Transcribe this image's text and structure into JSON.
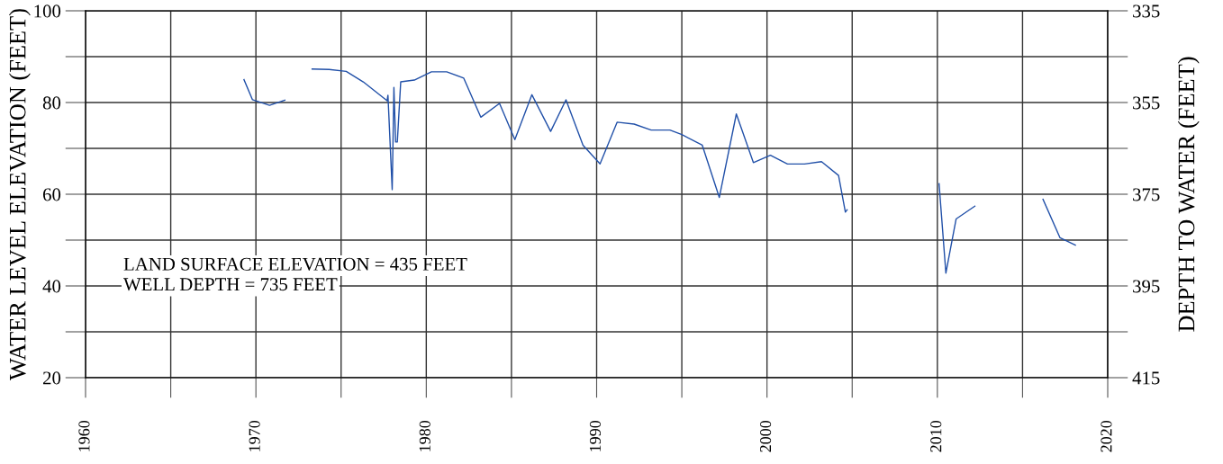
{
  "chart_data": {
    "type": "line",
    "ylabel": "WATER LEVEL ELEVATION (FEET)",
    "y2label": "DEPTH TO WATER (FEET)",
    "x": [
      1969.3,
      1969.8,
      1970.8,
      1971.7,
      null,
      1973.3,
      1974.3,
      1975.3,
      1976.3,
      1977.7,
      1977.75,
      1978.0,
      1978.1,
      1978.2,
      1978.3,
      1978.5,
      1979.3,
      1980.3,
      1981.2,
      1982.2,
      1983.2,
      1984.3,
      1985.2,
      1986.2,
      1987.3,
      1988.2,
      1989.2,
      1990.2,
      1991.2,
      1992.2,
      1993.2,
      1994.3,
      1995.0,
      1996.2,
      1997.2,
      1998.2,
      1999.2,
      2000.2,
      2001.2,
      2002.2,
      2003.2,
      2004.2,
      2004.6,
      2004.7,
      null,
      2010.1,
      2010.5,
      2011.1,
      2012.2,
      null,
      2016.2,
      2017.2,
      2018.1
    ],
    "series": [
      {
        "color": "#2150a8",
        "values": [
          85.0,
          80.6,
          79.4,
          80.5,
          null,
          87.3,
          87.2,
          86.8,
          84.5,
          80.4,
          81.6,
          61.0,
          83.3,
          71.4,
          71.4,
          84.5,
          84.9,
          86.7,
          86.7,
          85.3,
          76.8,
          79.8,
          71.9,
          81.7,
          73.7,
          80.6,
          70.7,
          66.6,
          75.7,
          75.3,
          74.0,
          74.0,
          73.0,
          70.7,
          59.3,
          77.5,
          66.9,
          68.5,
          66.6,
          66.6,
          67.1,
          64.1,
          56.1,
          56.6,
          null,
          62.3,
          42.8,
          54.6,
          57.4,
          null,
          58.9,
          50.5,
          48.9
        ]
      }
    ],
    "xlim": [
      1960,
      2020
    ],
    "xticks": [
      1960,
      {
        "value": 1965,
        "label": null
      },
      1970,
      {
        "value": 1975,
        "label": null
      },
      1980,
      {
        "value": 1985,
        "label": null
      },
      1990,
      {
        "value": 1995,
        "label": null
      },
      2000,
      {
        "value": 2005,
        "label": null
      },
      2010,
      {
        "value": 2015,
        "label": null
      },
      2020
    ],
    "ylim": [
      20,
      100
    ],
    "yticks": [
      20,
      {
        "value": 30,
        "label": null
      },
      40,
      {
        "value": 50,
        "label": null
      },
      60,
      {
        "value": 70,
        "label": null
      },
      80,
      {
        "value": 90,
        "label": null
      },
      100
    ],
    "y2lim": [
      415,
      335
    ],
    "y2ticks": [
      415,
      {
        "value": 405,
        "label": null
      },
      395,
      {
        "value": 385,
        "label": null
      },
      375,
      {
        "value": 365,
        "label": null
      },
      355,
      {
        "value": 345,
        "label": null
      },
      335
    ],
    "grid": true,
    "legend": false,
    "marker": "none",
    "line_style": "solid",
    "annotations": [
      "LAND SURFACE ELEVATION = 435 FEET",
      "WELL DEPTH = 735 FEET"
    ]
  }
}
